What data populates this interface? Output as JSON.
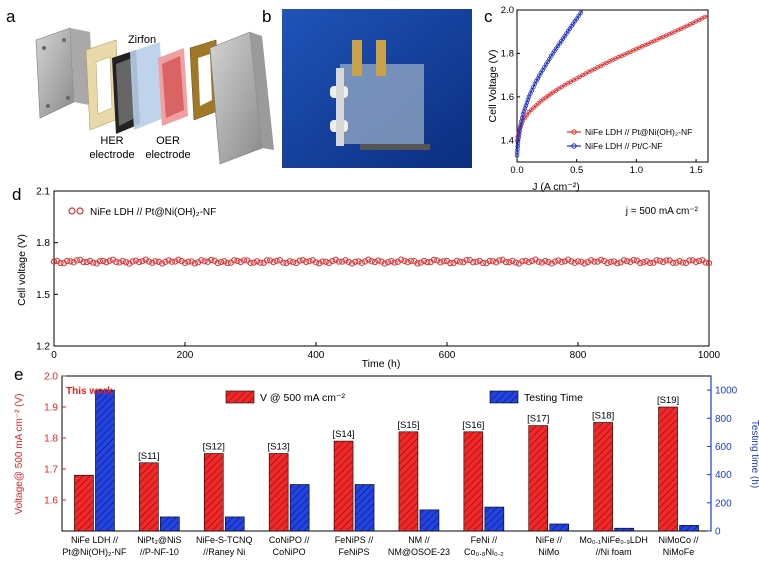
{
  "panel_labels": {
    "a": "a",
    "b": "b",
    "c": "c",
    "d": "d",
    "e": "e"
  },
  "panel_a": {
    "labels": {
      "zirfon": "Zirfon",
      "her_line1": "HER",
      "her_line2": "electrode",
      "oer_line1": "OER",
      "oer_line2": "electrode"
    }
  },
  "chart_data": [
    {
      "panel": "c",
      "type": "line",
      "xlabel": "J (A cm⁻²)",
      "ylabel": "Cell Voltage (V)",
      "xlim": [
        0,
        1.6
      ],
      "ylim": [
        1.3,
        2.0
      ],
      "xticks": [
        "0.0",
        "0.5",
        "1.0",
        "1.5"
      ],
      "yticks": [
        "1.4",
        "1.6",
        "1.8",
        "2.0"
      ],
      "legend_position": "lower-right",
      "series": [
        {
          "name": "NiFe LDH // Pt@Ni(OH)₂-NF",
          "color": "#e03030",
          "x": [
            0.0,
            0.02,
            0.05,
            0.1,
            0.2,
            0.3,
            0.4,
            0.5,
            0.6,
            0.8,
            1.0,
            1.2,
            1.4,
            1.6
          ],
          "y": [
            1.4,
            1.45,
            1.49,
            1.53,
            1.58,
            1.62,
            1.655,
            1.685,
            1.715,
            1.77,
            1.82,
            1.87,
            1.92,
            1.975
          ]
        },
        {
          "name": "NiFe LDH // Pt/C-NF",
          "color": "#2030c0",
          "x": [
            0.0,
            0.01,
            0.03,
            0.05,
            0.1,
            0.15,
            0.2,
            0.3,
            0.4,
            0.5,
            0.55
          ],
          "y": [
            1.33,
            1.4,
            1.47,
            1.52,
            1.6,
            1.66,
            1.71,
            1.8,
            1.88,
            1.96,
            2.0
          ]
        }
      ]
    },
    {
      "panel": "d",
      "type": "scatter",
      "xlabel": "Time (h)",
      "ylabel": "Cell voltage (V)",
      "xlim": [
        0,
        1000
      ],
      "ylim": [
        1.2,
        2.1
      ],
      "xticks": [
        "0",
        "200",
        "400",
        "600",
        "800",
        "1000"
      ],
      "yticks": [
        "1.2",
        "1.5",
        "1.8",
        "2.1"
      ],
      "legend_position": "top-left",
      "annotation": "j = 500 mA cm⁻²",
      "series": [
        {
          "name": "NiFe LDH // Pt@Ni(OH)₂-NF",
          "color": "#e03030",
          "x_start": 0,
          "x_end": 1000,
          "x_step": 5,
          "mean": 1.69,
          "amplitude": 0.012
        }
      ]
    },
    {
      "panel": "e",
      "type": "bar",
      "ylabel": "Voltage@ 500 mA cm⁻² (V)",
      "y2label": "Testing time (h)",
      "ylim": [
        1.5,
        2.0
      ],
      "y2lim": [
        0,
        1100
      ],
      "yticks": [
        "1.6",
        "1.7",
        "1.8",
        "1.9",
        "2.0"
      ],
      "y2ticks": [
        "0",
        "200",
        "400",
        "600",
        "800",
        "1000"
      ],
      "legend_position": "top",
      "this_work_label": "This work",
      "categories": [
        {
          "line1": "NiFe LDH //",
          "line2": "Pt@Ni(OH)₂-NF",
          "ref": ""
        },
        {
          "line1": "NiPt₃@NiS",
          "line2": "//P-NF-10",
          "ref": "[S11]"
        },
        {
          "line1": "NiFe-S-TCNQ",
          "line2": "//Raney Ni",
          "ref": "[S12]"
        },
        {
          "line1": "CoNiPO //",
          "line2": "CoNiPO",
          "ref": "[S13]"
        },
        {
          "line1": "FeNiPS //",
          "line2": "FeNiPS",
          "ref": "[S14]"
        },
        {
          "line1": "NM //",
          "line2": "NM@OSOE-23",
          "ref": "[S15]"
        },
        {
          "line1": "FeNi //",
          "line2": "Co₀.₈Ni₀.₂",
          "ref": "[S16]"
        },
        {
          "line1": "NiFe //",
          "line2": "NiMo",
          "ref": "[S17]"
        },
        {
          "line1": "Mo₀.₁NiFe₀.₉LDH",
          "line2": "//Ni foam",
          "ref": "[S18]"
        },
        {
          "line1": "NiMoCo //",
          "line2": "NiMoFe",
          "ref": "[S19]"
        }
      ],
      "series": [
        {
          "name": "V @ 500 mA cm⁻²",
          "color": "#e82020",
          "axis": "left",
          "values": [
            1.68,
            1.72,
            1.75,
            1.75,
            1.79,
            1.82,
            1.82,
            1.84,
            1.85,
            1.9
          ]
        },
        {
          "name": "Testing Time",
          "color": "#1a3ad8",
          "axis": "right",
          "values": [
            1000,
            100,
            100,
            330,
            330,
            150,
            170,
            50,
            20,
            40
          ]
        }
      ]
    }
  ]
}
